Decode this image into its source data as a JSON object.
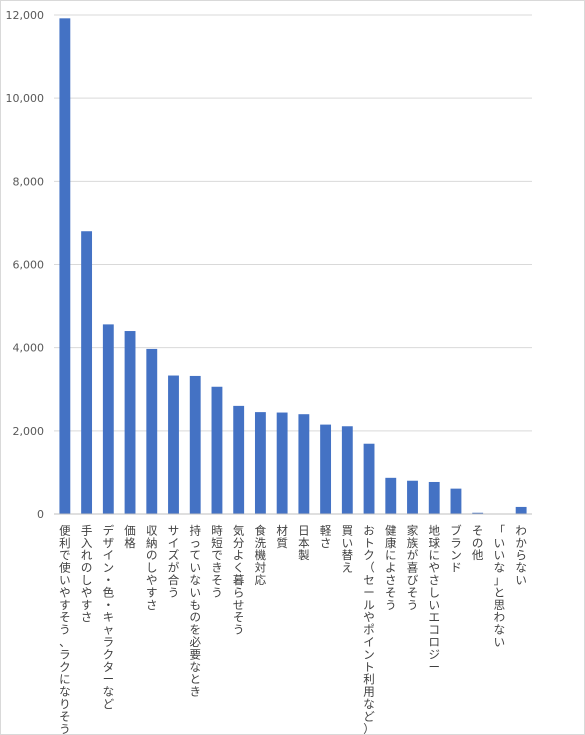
{
  "chart_data": {
    "type": "bar",
    "title": "",
    "xlabel": "",
    "ylabel": "",
    "ylim": [
      0,
      12000
    ],
    "yticks": [
      0,
      2000,
      4000,
      6000,
      8000,
      10000,
      12000
    ],
    "ytick_labels": [
      "0",
      "2,000",
      "4,000",
      "6,000",
      "8,000",
      "10,000",
      "12,000"
    ],
    "grid": true,
    "legend": "none",
    "bar_color": "#4472C4",
    "grid_color": "#d9d9d9",
    "categories": [
      "便利で使いやすそう、ラクになりそう",
      "手入れのしやすさ",
      "デザイン・色・キャラクターなど",
      "価格",
      "収納のしやすさ",
      "サイズが合う",
      "持っていないものを必要なとき",
      "時短できそう",
      "気分よく暮らせそう",
      "食洗機対応",
      "材質",
      "日本製",
      "軽さ",
      "買い替え",
      "おトク（セールやポイント利用など）",
      "健康によさそう",
      "家族が喜びそう",
      "地球にやさしいエコロジー",
      "ブランド",
      "その他",
      "「いいな」と思わない",
      "わからない"
    ],
    "values": [
      11920,
      6800,
      4560,
      4400,
      3970,
      3330,
      3320,
      3060,
      2600,
      2450,
      2440,
      2400,
      2150,
      2110,
      1690,
      870,
      800,
      770,
      610,
      30,
      10,
      170
    ]
  }
}
